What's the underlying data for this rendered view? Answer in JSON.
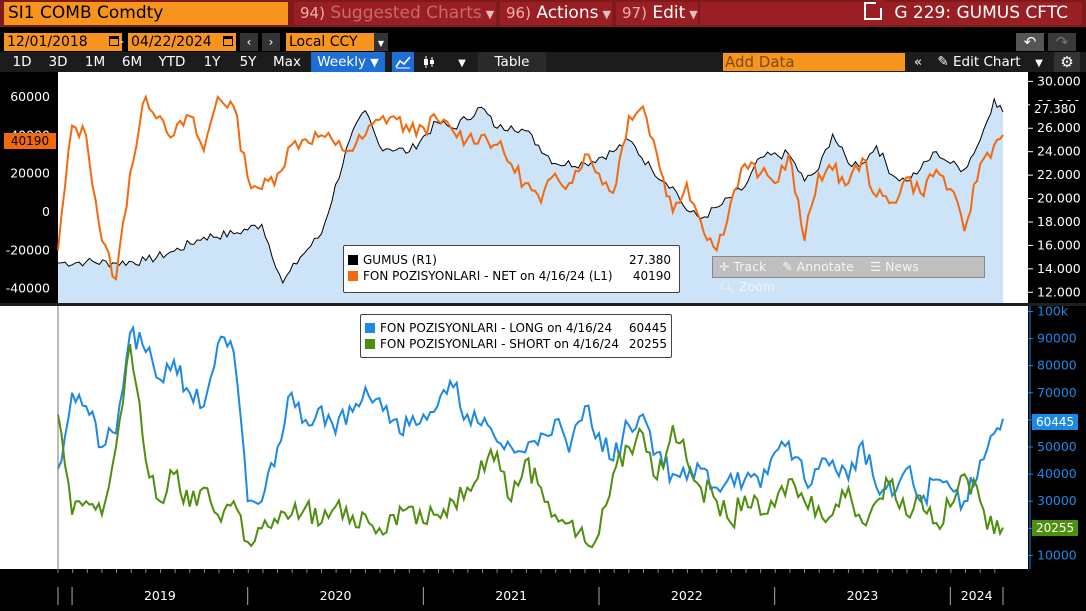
{
  "header": {
    "ticker": "SI1 COMB Comdty",
    "menus": [
      {
        "num": "94)",
        "label": "Suggested Charts",
        "dim": true
      },
      {
        "num": "96)",
        "label": "Actions",
        "dim": false
      },
      {
        "num": "97)",
        "label": "Edit",
        "dim": false
      }
    ],
    "function_title": "G 229: GUMUS CFTC"
  },
  "toolbar": {
    "start_date": "12/01/2018",
    "end_date": "04/22/2024",
    "date_separator": "-",
    "currency": "Local CCY",
    "periods": [
      "1D",
      "3D",
      "1M",
      "6M",
      "YTD",
      "1Y",
      "5Y",
      "Max"
    ],
    "frequency": "Weekly",
    "table_label": "Table",
    "add_data_placeholder": "Add Data",
    "edit_chart_label": "Edit Chart"
  },
  "colors": {
    "accent_orange": "#f7941d",
    "header_red": "#9a1f24",
    "silver_fill": "#cde3f7",
    "net_orange": "#f26a10",
    "long_blue": "#1e88e5",
    "short_green": "#4e8f0f",
    "active_blue": "#1d6fd6"
  },
  "upper_panel": {
    "left_ticks": [
      "60000",
      "40000",
      "20000",
      "0",
      "-20000",
      "-40000"
    ],
    "right_ticks": [
      "30.000",
      "28.000",
      "26.000",
      "24.000",
      "22.000",
      "20.000",
      "18.000",
      "16.000",
      "14.000",
      "12.000"
    ],
    "last_value_left": "40190",
    "last_value_right": "27.380",
    "legend": [
      {
        "label": "GUMUS (R1)",
        "value": "27.380",
        "color": "#000000"
      },
      {
        "label": "FON POZISYONLARI - NET on 4/16/24 (L1)",
        "value": "40190",
        "color": "#f26a10"
      }
    ],
    "tools": [
      "Track",
      "Annotate",
      "News",
      "Zoom"
    ]
  },
  "lower_panel": {
    "right_ticks": [
      "100k",
      "90000",
      "80000",
      "70000",
      "60000",
      "50000",
      "40000",
      "30000",
      "20000",
      "10000"
    ],
    "last_value_long": "60445",
    "last_value_short": "20255",
    "legend": [
      {
        "label": "FON POZISYONLARI - LONG on 4/16/24",
        "value": "60445",
        "color": "#1e88e5"
      },
      {
        "label": "FON POZISYONLARI - SHORT on 4/16/24",
        "value": "20255",
        "color": "#4e8f0f"
      }
    ]
  },
  "x_axis": {
    "labels": [
      "2019",
      "2020",
      "2021",
      "2022",
      "2023",
      "2024"
    ]
  },
  "chart_data": [
    {
      "type": "area",
      "x": [
        2018.92,
        2019.08,
        2019.25,
        2019.42,
        2019.58,
        2019.75,
        2019.92,
        2020.08,
        2020.2,
        2020.3,
        2020.42,
        2020.58,
        2020.67,
        2020.75,
        2020.92,
        2021.08,
        2021.17,
        2021.33,
        2021.42,
        2021.5,
        2021.58,
        2021.75,
        2021.92,
        2022.08,
        2022.17,
        2022.3,
        2022.42,
        2022.5,
        2022.58,
        2022.7,
        2022.83,
        2022.92,
        2023.08,
        2023.17,
        2023.25,
        2023.33,
        2023.42,
        2023.5,
        2023.58,
        2023.67,
        2023.75,
        2023.83,
        2023.92,
        2024.0,
        2024.08,
        2024.17,
        2024.25,
        2024.3
      ],
      "series": [
        {
          "name": "GUMUS (R1)",
          "axis": "right",
          "values": [
            14.5,
            14.6,
            14.5,
            14.7,
            15.5,
            16.7,
            17.0,
            17.8,
            12.8,
            15.0,
            17.0,
            25.0,
            27.5,
            24.5,
            24.0,
            26.5,
            26.0,
            27.8,
            26.0,
            26.2,
            25.8,
            23.0,
            23.0,
            24.0,
            25.0,
            22.5,
            21.0,
            19.0,
            18.3,
            19.5,
            21.0,
            23.5,
            23.8,
            21.5,
            22.5,
            25.5,
            23.0,
            23.0,
            24.5,
            22.0,
            21.5,
            22.5,
            24.0,
            23.0,
            22.5,
            25.0,
            28.5,
            27.38
          ]
        }
      ],
      "ylabel": "",
      "ylim": [
        11.0,
        30.8
      ]
    },
    {
      "type": "line",
      "x": [
        2018.92,
        2019.0,
        2019.08,
        2019.17,
        2019.25,
        2019.33,
        2019.42,
        2019.5,
        2019.58,
        2019.67,
        2019.75,
        2019.83,
        2019.92,
        2020.0,
        2020.08,
        2020.17,
        2020.25,
        2020.33,
        2020.42,
        2020.5,
        2020.58,
        2020.67,
        2020.75,
        2020.83,
        2020.92,
        2021.0,
        2021.08,
        2021.17,
        2021.25,
        2021.33,
        2021.42,
        2021.5,
        2021.58,
        2021.67,
        2021.75,
        2021.83,
        2021.92,
        2022.0,
        2022.08,
        2022.17,
        2022.25,
        2022.33,
        2022.42,
        2022.5,
        2022.58,
        2022.67,
        2022.75,
        2022.83,
        2022.92,
        2023.0,
        2023.08,
        2023.17,
        2023.25,
        2023.33,
        2023.42,
        2023.5,
        2023.58,
        2023.67,
        2023.75,
        2023.83,
        2023.92,
        2024.0,
        2024.08,
        2024.17,
        2024.25,
        2024.3
      ],
      "series": [
        {
          "name": "FON POZISYONLARI - NET on 4/16/24 (L1)",
          "axis": "left",
          "values": [
            -20000,
            45000,
            40000,
            -15000,
            -35000,
            20000,
            60000,
            50000,
            40000,
            50000,
            32000,
            60000,
            55000,
            18000,
            12000,
            20000,
            35000,
            38000,
            40000,
            35000,
            32000,
            40000,
            48000,
            50000,
            42000,
            44000,
            48000,
            42000,
            38000,
            40000,
            35000,
            25000,
            15000,
            5000,
            20000,
            15000,
            30000,
            20000,
            10000,
            50000,
            55000,
            30000,
            0,
            15000,
            -5000,
            -20000,
            5000,
            25000,
            20000,
            15000,
            30000,
            -15000,
            20000,
            22000,
            15000,
            28000,
            8000,
            5000,
            18000,
            10000,
            22000,
            12000,
            -10000,
            25000,
            35000,
            40190
          ]
        }
      ],
      "ylabel": "",
      "ylim": [
        -48000,
        73000
      ]
    },
    {
      "type": "line",
      "x": [
        2018.92,
        2019.0,
        2019.08,
        2019.17,
        2019.25,
        2019.33,
        2019.42,
        2019.5,
        2019.58,
        2019.67,
        2019.75,
        2019.83,
        2019.92,
        2020.0,
        2020.08,
        2020.17,
        2020.25,
        2020.33,
        2020.42,
        2020.5,
        2020.58,
        2020.67,
        2020.75,
        2020.83,
        2020.92,
        2021.0,
        2021.08,
        2021.17,
        2021.25,
        2021.33,
        2021.42,
        2021.5,
        2021.58,
        2021.67,
        2021.75,
        2021.83,
        2021.92,
        2022.0,
        2022.08,
        2022.17,
        2022.25,
        2022.33,
        2022.42,
        2022.5,
        2022.58,
        2022.67,
        2022.75,
        2022.83,
        2022.92,
        2023.0,
        2023.08,
        2023.17,
        2023.25,
        2023.33,
        2023.42,
        2023.5,
        2023.58,
        2023.67,
        2023.75,
        2023.83,
        2023.92,
        2024.0,
        2024.08,
        2024.17,
        2024.25,
        2024.3
      ],
      "series": [
        {
          "name": "FON POZISYONLARI - LONG on 4/16/24",
          "values": [
            42000,
            70000,
            65000,
            50000,
            55000,
            92000,
            85000,
            75000,
            82000,
            70000,
            65000,
            88000,
            85000,
            30000,
            30000,
            50000,
            70000,
            60000,
            65000,
            55000,
            65000,
            72000,
            68000,
            60000,
            58000,
            62000,
            65000,
            72000,
            62000,
            58000,
            52000,
            50000,
            48000,
            55000,
            60000,
            48000,
            65000,
            55000,
            45000,
            58000,
            62000,
            48000,
            40000,
            38000,
            42000,
            35000,
            40000,
            38000,
            35000,
            48000,
            52000,
            38000,
            42000,
            45000,
            38000,
            52000,
            35000,
            32000,
            42000,
            30000,
            38000,
            35000,
            30000,
            45000,
            55000,
            60445
          ]
        },
        {
          "name": "FON POZISYONLARI - SHORT on 4/16/24",
          "values": [
            62000,
            25000,
            30000,
            25000,
            50000,
            88000,
            45000,
            30000,
            40000,
            28000,
            35000,
            25000,
            30000,
            15000,
            20000,
            22000,
            25000,
            28000,
            22000,
            28000,
            22000,
            25000,
            20000,
            25000,
            28000,
            22000,
            25000,
            30000,
            35000,
            45000,
            48000,
            30000,
            45000,
            35000,
            25000,
            22000,
            15000,
            18000,
            40000,
            50000,
            55000,
            38000,
            58000,
            45000,
            35000,
            30000,
            22000,
            32000,
            25000,
            28000,
            38000,
            30000,
            28000,
            25000,
            35000,
            22000,
            30000,
            38000,
            25000,
            32000,
            22000,
            28000,
            40000,
            30000,
            18000,
            20255
          ]
        }
      ],
      "ylabel": "",
      "ylim": [
        5000,
        102000
      ]
    }
  ]
}
